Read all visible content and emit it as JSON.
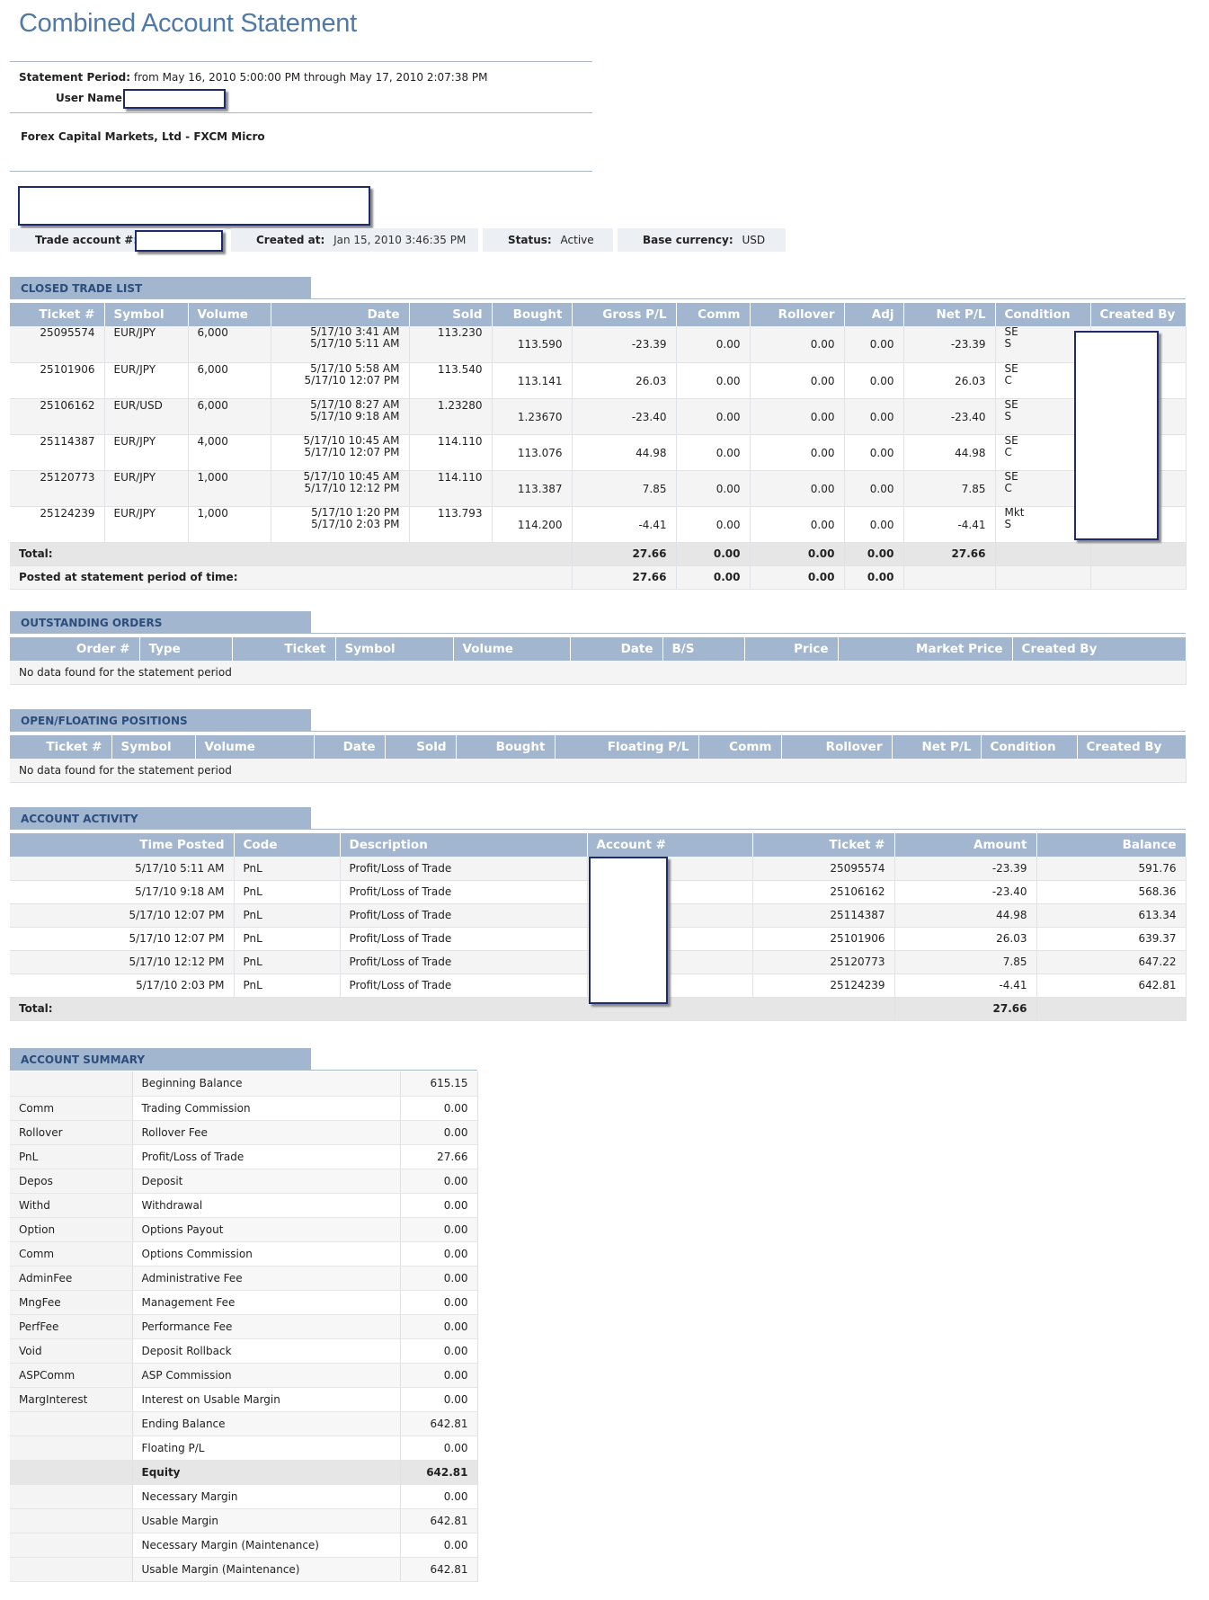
{
  "header": {
    "title": "Combined Account Statement",
    "period_label": "Statement Period:",
    "period_value": "from May 16, 2010 5:00:00 PM through May 17, 2010 2:07:38 PM",
    "user_label": "User Name:",
    "broker": "Forex Capital Markets, Ltd - FXCM Micro"
  },
  "account_info": {
    "trade_account_label": "Trade account #:",
    "created_label": "Created at:",
    "created_value": "Jan 15, 2010 3:46:35 PM",
    "status_label": "Status:",
    "status_value": "Active",
    "currency_label": "Base currency:",
    "currency_value": "USD"
  },
  "closed_trades": {
    "title": "CLOSED TRADE LIST",
    "columns": [
      "Ticket #",
      "Symbol",
      "Volume",
      "Date",
      "Sold",
      "Bought",
      "Gross P/L",
      "Comm",
      "Rollover",
      "Adj",
      "Net P/L",
      "Condition",
      "Created By"
    ],
    "rows": [
      {
        "ticket": "25095574",
        "symbol": "EUR/JPY",
        "volume": "6,000",
        "date1": "5/17/10 3:41 AM",
        "date2": "5/17/10 5:11 AM",
        "sold": "113.230",
        "bought": "113.590",
        "gross": "-23.39",
        "comm": "0.00",
        "rollover": "0.00",
        "adj": "0.00",
        "net": "-23.39",
        "cond1": "SE",
        "cond2": "S"
      },
      {
        "ticket": "25101906",
        "symbol": "EUR/JPY",
        "volume": "6,000",
        "date1": "5/17/10 5:58 AM",
        "date2": "5/17/10 12:07 PM",
        "sold": "113.540",
        "bought": "113.141",
        "gross": "26.03",
        "comm": "0.00",
        "rollover": "0.00",
        "adj": "0.00",
        "net": "26.03",
        "cond1": "SE",
        "cond2": "C"
      },
      {
        "ticket": "25106162",
        "symbol": "EUR/USD",
        "volume": "6,000",
        "date1": "5/17/10 8:27 AM",
        "date2": "5/17/10 9:18 AM",
        "sold": "1.23280",
        "bought": "1.23670",
        "gross": "-23.40",
        "comm": "0.00",
        "rollover": "0.00",
        "adj": "0.00",
        "net": "-23.40",
        "cond1": "SE",
        "cond2": "S"
      },
      {
        "ticket": "25114387",
        "symbol": "EUR/JPY",
        "volume": "4,000",
        "date1": "5/17/10 10:45 AM",
        "date2": "5/17/10 12:07 PM",
        "sold": "114.110",
        "bought": "113.076",
        "gross": "44.98",
        "comm": "0.00",
        "rollover": "0.00",
        "adj": "0.00",
        "net": "44.98",
        "cond1": "SE",
        "cond2": "C"
      },
      {
        "ticket": "25120773",
        "symbol": "EUR/JPY",
        "volume": "1,000",
        "date1": "5/17/10 10:45 AM",
        "date2": "5/17/10 12:12 PM",
        "sold": "114.110",
        "bought": "113.387",
        "gross": "7.85",
        "comm": "0.00",
        "rollover": "0.00",
        "adj": "0.00",
        "net": "7.85",
        "cond1": "SE",
        "cond2": "C"
      },
      {
        "ticket": "25124239",
        "symbol": "EUR/JPY",
        "volume": "1,000",
        "date1": "5/17/10 1:20 PM",
        "date2": "5/17/10 2:03 PM",
        "sold": "113.793",
        "bought": "114.200",
        "gross": "-4.41",
        "comm": "0.00",
        "rollover": "0.00",
        "adj": "0.00",
        "net": "-4.41",
        "cond1": "Mkt",
        "cond2": "S"
      }
    ],
    "total_label": "Total:",
    "total": {
      "gross": "27.66",
      "comm": "0.00",
      "rollover": "0.00",
      "adj": "0.00",
      "net": "27.66"
    },
    "posted_label": "Posted at statement period of time:",
    "posted": {
      "gross": "27.66",
      "comm": "0.00",
      "rollover": "0.00",
      "adj": "0.00"
    }
  },
  "outstanding_orders": {
    "title": "OUTSTANDING ORDERS",
    "columns": [
      "Order #",
      "Type",
      "Ticket",
      "Symbol",
      "Volume",
      "Date",
      "B/S",
      "Price",
      "Market Price",
      "Created By"
    ],
    "empty": "No data found for the statement period"
  },
  "open_positions": {
    "title": "OPEN/FLOATING POSITIONS",
    "columns": [
      "Ticket #",
      "Symbol",
      "Volume",
      "Date",
      "Sold",
      "Bought",
      "Floating P/L",
      "Comm",
      "Rollover",
      "Net P/L",
      "Condition",
      "Created By"
    ],
    "empty": "No data found for the statement period"
  },
  "account_activity": {
    "title": "ACCOUNT ACTIVITY",
    "columns": [
      "Time Posted",
      "Code",
      "Description",
      "Account #",
      "Ticket #",
      "Amount",
      "Balance"
    ],
    "rows": [
      {
        "time": "5/17/10 5:11 AM",
        "code": "PnL",
        "desc": "Profit/Loss of Trade",
        "ticket": "25095574",
        "amount": "-23.39",
        "balance": "591.76"
      },
      {
        "time": "5/17/10 9:18 AM",
        "code": "PnL",
        "desc": "Profit/Loss of Trade",
        "ticket": "25106162",
        "amount": "-23.40",
        "balance": "568.36"
      },
      {
        "time": "5/17/10 12:07 PM",
        "code": "PnL",
        "desc": "Profit/Loss of Trade",
        "ticket": "25114387",
        "amount": "44.98",
        "balance": "613.34"
      },
      {
        "time": "5/17/10 12:07 PM",
        "code": "PnL",
        "desc": "Profit/Loss of Trade",
        "ticket": "25101906",
        "amount": "26.03",
        "balance": "639.37"
      },
      {
        "time": "5/17/10 12:12 PM",
        "code": "PnL",
        "desc": "Profit/Loss of Trade",
        "ticket": "25120773",
        "amount": "7.85",
        "balance": "647.22"
      },
      {
        "time": "5/17/10 2:03 PM",
        "code": "PnL",
        "desc": "Profit/Loss of Trade",
        "ticket": "25124239",
        "amount": "-4.41",
        "balance": "642.81"
      }
    ],
    "total_label": "Total:",
    "total_amount": "27.66"
  },
  "account_summary": {
    "title": "ACCOUNT SUMMARY",
    "rows": [
      {
        "code": "",
        "desc": "Beginning Balance",
        "value": "615.15"
      },
      {
        "code": "Comm",
        "desc": "Trading Commission",
        "value": "0.00"
      },
      {
        "code": "Rollover",
        "desc": "Rollover Fee",
        "value": "0.00"
      },
      {
        "code": "PnL",
        "desc": "Profit/Loss of Trade",
        "value": "27.66"
      },
      {
        "code": "Depos",
        "desc": "Deposit",
        "value": "0.00"
      },
      {
        "code": "Withd",
        "desc": "Withdrawal",
        "value": "0.00"
      },
      {
        "code": "Option",
        "desc": "Options Payout",
        "value": "0.00"
      },
      {
        "code": "Comm",
        "desc": "Options Commission",
        "value": "0.00"
      },
      {
        "code": "AdminFee",
        "desc": "Administrative Fee",
        "value": "0.00"
      },
      {
        "code": "MngFee",
        "desc": "Management Fee",
        "value": "0.00"
      },
      {
        "code": "PerfFee",
        "desc": "Performance Fee",
        "value": "0.00"
      },
      {
        "code": "Void",
        "desc": "Deposit Rollback",
        "value": "0.00"
      },
      {
        "code": "ASPComm",
        "desc": "ASP Commission",
        "value": "0.00"
      },
      {
        "code": "MargInterest",
        "desc": "Interest on Usable Margin",
        "value": "0.00"
      },
      {
        "code": "",
        "desc": "Ending Balance",
        "value": "642.81"
      },
      {
        "code": "",
        "desc": "Floating P/L",
        "value": "0.00"
      },
      {
        "code": "",
        "desc": "Equity",
        "value": "642.81"
      },
      {
        "code": "",
        "desc": "Necessary Margin",
        "value": "0.00"
      },
      {
        "code": "",
        "desc": "Usable Margin",
        "value": "642.81"
      },
      {
        "code": "",
        "desc": "Necessary Margin (Maintenance)",
        "value": "0.00"
      },
      {
        "code": "",
        "desc": "Usable Margin (Maintenance)",
        "value": "642.81"
      }
    ]
  }
}
